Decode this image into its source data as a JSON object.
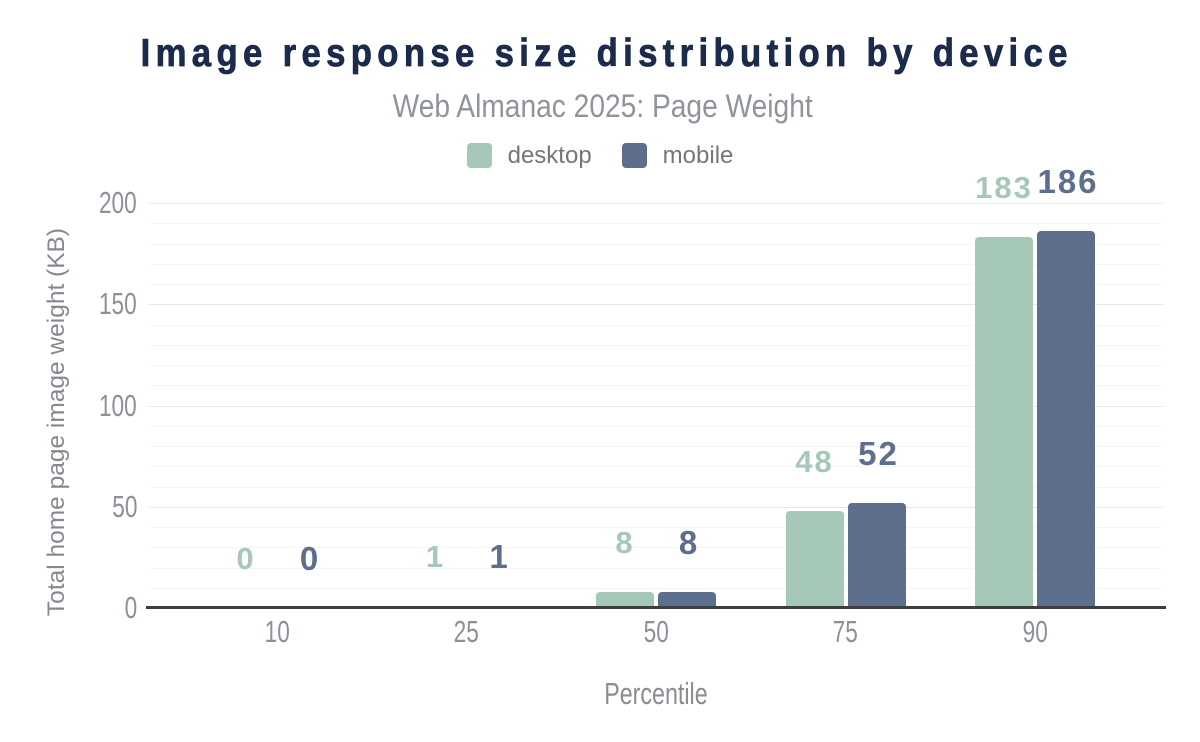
{
  "title": "Image response size distribution by device",
  "subtitle": "Web Almanac 2025: Page Weight",
  "legend": {
    "items": [
      {
        "label": "desktop",
        "color": "#a6c9b7"
      },
      {
        "label": "mobile",
        "color": "#5e6f8d"
      }
    ]
  },
  "chart_data": {
    "type": "bar",
    "title": "Image response size distribution by device",
    "subtitle": "Web Almanac 2025: Page Weight",
    "categories": [
      "10",
      "25",
      "50",
      "75",
      "90"
    ],
    "series": [
      {
        "name": "desktop",
        "color": "#a6c9b7",
        "values": [
          0,
          1,
          8,
          48,
          183
        ]
      },
      {
        "name": "mobile",
        "color": "#5e6f8d",
        "values": [
          0,
          1,
          8,
          52,
          186
        ]
      }
    ],
    "xlabel": "Percentile",
    "ylabel": "Total home page image weight (KB)",
    "ylim": [
      0,
      200
    ],
    "yticks": [
      0,
      50,
      100,
      150,
      200
    ],
    "minor_tick_step": 10,
    "grid": true,
    "legend_position": "top",
    "data_labels": true
  },
  "colors": {
    "title": "#1a2b4c",
    "subtitle": "#8f949b",
    "axis_labels": "#8c9199",
    "axis_line": "#3b3e42",
    "major_grid": "#e4e6e9",
    "minor_grid": "#f4f5f7",
    "background": "#ffffff"
  }
}
